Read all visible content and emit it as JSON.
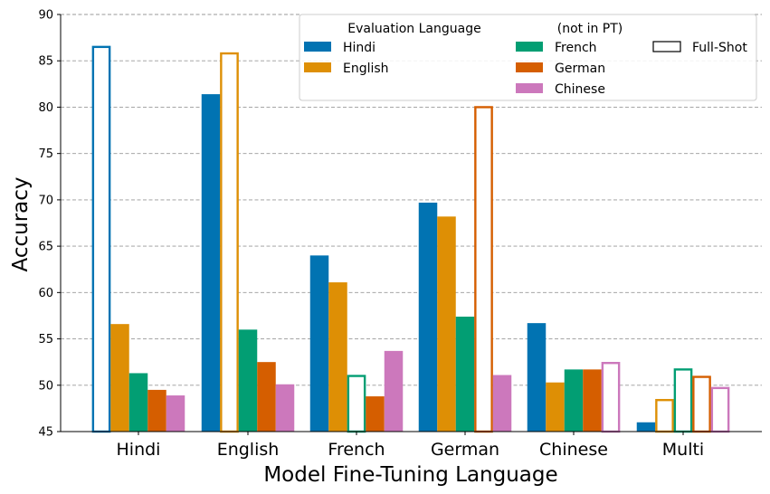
{
  "chart_data": {
    "type": "bar",
    "xlabel": "Model Fine-Tuning Language",
    "ylabel": "Accuracy",
    "ylim": [
      45,
      90
    ],
    "yticks": [
      45,
      50,
      55,
      60,
      65,
      70,
      75,
      80,
      85,
      90
    ],
    "grid": "horizontal dashed",
    "categories": [
      "Hindi",
      "English",
      "French",
      "German",
      "Chinese",
      "Multi"
    ],
    "series": [
      {
        "name": "Hindi",
        "color": "#0173b2",
        "values": [
          86.5,
          81.4,
          64.0,
          69.7,
          56.7,
          46.0
        ],
        "full_shot": [
          true,
          false,
          false,
          false,
          false,
          false
        ]
      },
      {
        "name": "English",
        "color": "#de8f05",
        "values": [
          56.6,
          85.8,
          61.1,
          68.2,
          50.3,
          48.4
        ],
        "full_shot": [
          false,
          true,
          false,
          false,
          false,
          true
        ]
      },
      {
        "name": "French",
        "color": "#029e73",
        "values": [
          51.3,
          56.0,
          51.0,
          57.4,
          51.7,
          51.7
        ],
        "full_shot": [
          false,
          false,
          true,
          false,
          false,
          true
        ]
      },
      {
        "name": "German",
        "color": "#d55e00",
        "values": [
          49.5,
          52.5,
          48.8,
          80.0,
          51.7,
          50.9
        ],
        "full_shot": [
          false,
          false,
          false,
          true,
          false,
          true
        ]
      },
      {
        "name": "Chinese",
        "color": "#cc78bc",
        "values": [
          48.9,
          50.1,
          53.7,
          51.1,
          52.4,
          49.7
        ],
        "full_shot": [
          false,
          false,
          false,
          false,
          true,
          true
        ]
      }
    ],
    "legend": {
      "placement": "top-right",
      "title": "Evaluation Language",
      "subtitle": "(not in PT)",
      "full_shot_label": "Full-Shot"
    }
  }
}
